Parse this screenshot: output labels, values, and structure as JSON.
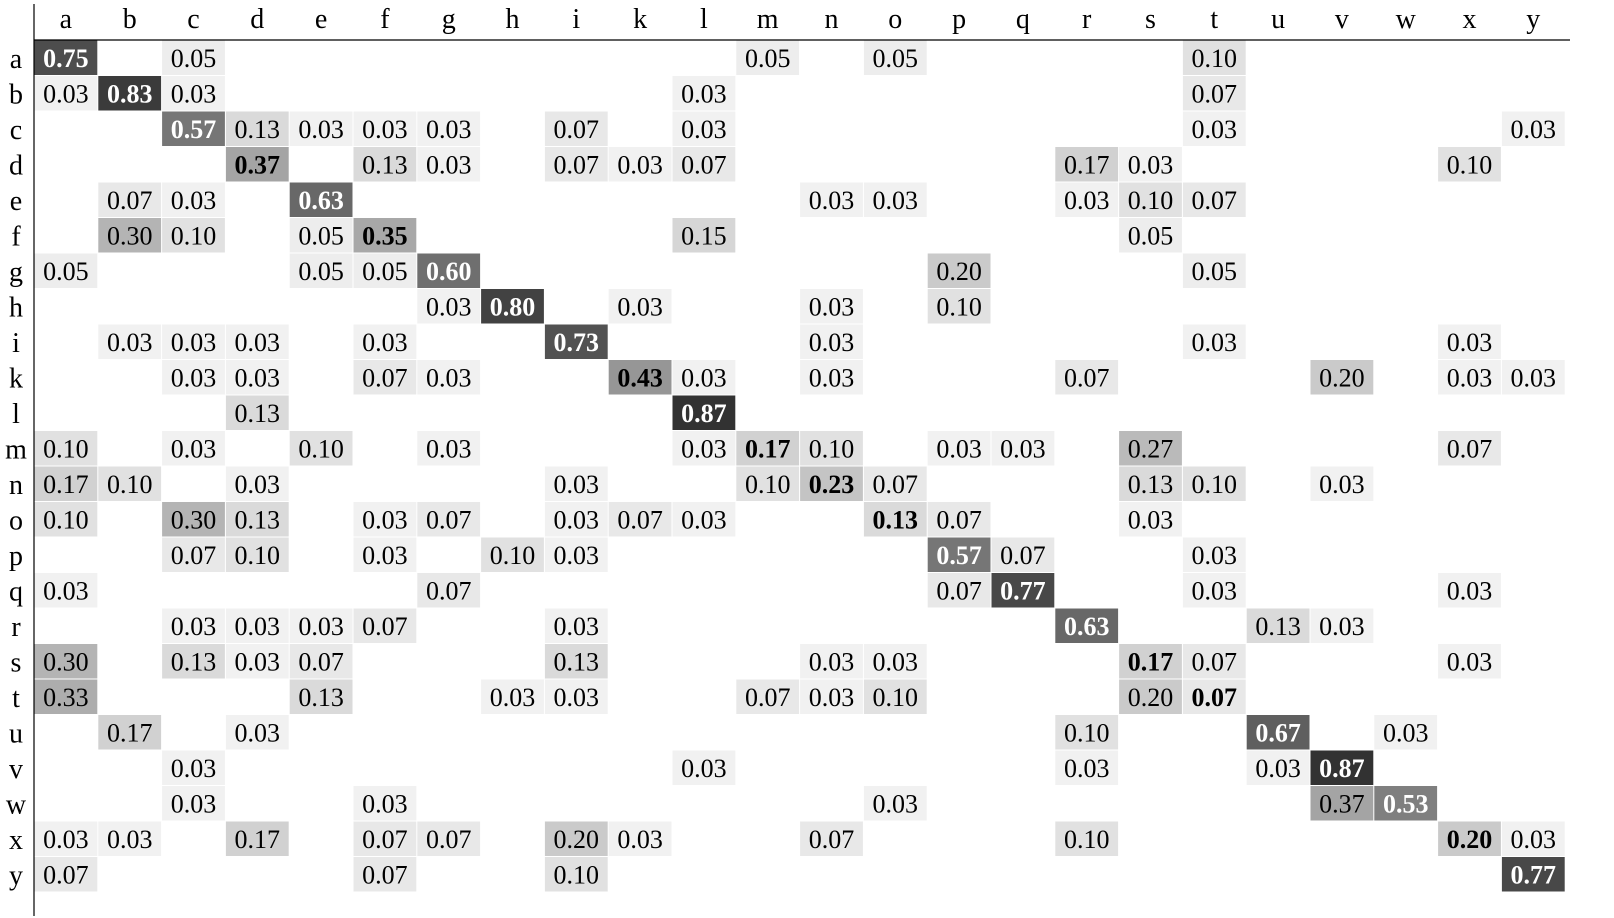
{
  "chart_data": {
    "type": "heatmap",
    "title": "",
    "xlabel": "",
    "ylabel": "",
    "x_labels": [
      "a",
      "b",
      "c",
      "d",
      "e",
      "f",
      "g",
      "h",
      "i",
      "k",
      "l",
      "m",
      "n",
      "o",
      "p",
      "q",
      "r",
      "s",
      "t",
      "u",
      "v",
      "w",
      "x",
      "y"
    ],
    "y_labels": [
      "a",
      "b",
      "c",
      "d",
      "e",
      "f",
      "g",
      "h",
      "i",
      "k",
      "l",
      "m",
      "n",
      "o",
      "p",
      "q",
      "r",
      "s",
      "t",
      "u",
      "v",
      "w",
      "x",
      "y"
    ],
    "value_range": [
      0,
      1
    ],
    "cells": [
      [
        "a",
        "a",
        0.75
      ],
      [
        "a",
        "c",
        0.05
      ],
      [
        "a",
        "m",
        0.05
      ],
      [
        "a",
        "o",
        0.05
      ],
      [
        "a",
        "t",
        0.1
      ],
      [
        "b",
        "a",
        0.03
      ],
      [
        "b",
        "b",
        0.83
      ],
      [
        "b",
        "c",
        0.03
      ],
      [
        "b",
        "l",
        0.03
      ],
      [
        "b",
        "t",
        0.07
      ],
      [
        "c",
        "c",
        0.57
      ],
      [
        "c",
        "d",
        0.13
      ],
      [
        "c",
        "e",
        0.03
      ],
      [
        "c",
        "f",
        0.03
      ],
      [
        "c",
        "g",
        0.03
      ],
      [
        "c",
        "i",
        0.07
      ],
      [
        "c",
        "l",
        0.03
      ],
      [
        "c",
        "t",
        0.03
      ],
      [
        "c",
        "y",
        0.03
      ],
      [
        "d",
        "d",
        0.37
      ],
      [
        "d",
        "f",
        0.13
      ],
      [
        "d",
        "g",
        0.03
      ],
      [
        "d",
        "i",
        0.07
      ],
      [
        "d",
        "k",
        0.03
      ],
      [
        "d",
        "l",
        0.07
      ],
      [
        "d",
        "r",
        0.17
      ],
      [
        "d",
        "s",
        0.03
      ],
      [
        "d",
        "x",
        0.1
      ],
      [
        "e",
        "b",
        0.07
      ],
      [
        "e",
        "c",
        0.03
      ],
      [
        "e",
        "e",
        0.63
      ],
      [
        "e",
        "n",
        0.03
      ],
      [
        "e",
        "o",
        0.03
      ],
      [
        "e",
        "r",
        0.03
      ],
      [
        "e",
        "s",
        0.1
      ],
      [
        "e",
        "t",
        0.07
      ],
      [
        "f",
        "b",
        0.3
      ],
      [
        "f",
        "c",
        0.1
      ],
      [
        "f",
        "e",
        0.05
      ],
      [
        "f",
        "f",
        0.35
      ],
      [
        "f",
        "l",
        0.15
      ],
      [
        "f",
        "s",
        0.05
      ],
      [
        "g",
        "a",
        0.05
      ],
      [
        "g",
        "e",
        0.05
      ],
      [
        "g",
        "f",
        0.05
      ],
      [
        "g",
        "g",
        0.6
      ],
      [
        "g",
        "p",
        0.2
      ],
      [
        "g",
        "t",
        0.05
      ],
      [
        "h",
        "g",
        0.03
      ],
      [
        "h",
        "h",
        0.8
      ],
      [
        "h",
        "k",
        0.03
      ],
      [
        "h",
        "n",
        0.03
      ],
      [
        "h",
        "p",
        0.1
      ],
      [
        "i",
        "b",
        0.03
      ],
      [
        "i",
        "c",
        0.03
      ],
      [
        "i",
        "d",
        0.03
      ],
      [
        "i",
        "f",
        0.03
      ],
      [
        "i",
        "i",
        0.73
      ],
      [
        "i",
        "n",
        0.03
      ],
      [
        "i",
        "t",
        0.03
      ],
      [
        "i",
        "x",
        0.03
      ],
      [
        "k",
        "c",
        0.03
      ],
      [
        "k",
        "d",
        0.03
      ],
      [
        "k",
        "f",
        0.07
      ],
      [
        "k",
        "g",
        0.03
      ],
      [
        "k",
        "k",
        0.43
      ],
      [
        "k",
        "l",
        0.03
      ],
      [
        "k",
        "n",
        0.03
      ],
      [
        "k",
        "r",
        0.07
      ],
      [
        "k",
        "v",
        0.2
      ],
      [
        "k",
        "x",
        0.03
      ],
      [
        "k",
        "y",
        0.03
      ],
      [
        "l",
        "d",
        0.13
      ],
      [
        "l",
        "l",
        0.87
      ],
      [
        "m",
        "a",
        0.1
      ],
      [
        "m",
        "c",
        0.03
      ],
      [
        "m",
        "e",
        0.1
      ],
      [
        "m",
        "g",
        0.03
      ],
      [
        "m",
        "l",
        0.03
      ],
      [
        "m",
        "m",
        0.17
      ],
      [
        "m",
        "n",
        0.1
      ],
      [
        "m",
        "p",
        0.03
      ],
      [
        "m",
        "q",
        0.03
      ],
      [
        "m",
        "s",
        0.27
      ],
      [
        "m",
        "x",
        0.07
      ],
      [
        "n",
        "a",
        0.17
      ],
      [
        "n",
        "b",
        0.1
      ],
      [
        "n",
        "d",
        0.03
      ],
      [
        "n",
        "i",
        0.03
      ],
      [
        "n",
        "m",
        0.1
      ],
      [
        "n",
        "n",
        0.23
      ],
      [
        "n",
        "o",
        0.07
      ],
      [
        "n",
        "s",
        0.13
      ],
      [
        "n",
        "t",
        0.1
      ],
      [
        "n",
        "v",
        0.03
      ],
      [
        "o",
        "a",
        0.1
      ],
      [
        "o",
        "c",
        0.3
      ],
      [
        "o",
        "d",
        0.13
      ],
      [
        "o",
        "f",
        0.03
      ],
      [
        "o",
        "g",
        0.07
      ],
      [
        "o",
        "i",
        0.03
      ],
      [
        "o",
        "k",
        0.07
      ],
      [
        "o",
        "l",
        0.03
      ],
      [
        "o",
        "o",
        0.13
      ],
      [
        "o",
        "p",
        0.07
      ],
      [
        "o",
        "s",
        0.03
      ],
      [
        "p",
        "c",
        0.07
      ],
      [
        "p",
        "d",
        0.1
      ],
      [
        "p",
        "f",
        0.03
      ],
      [
        "p",
        "h",
        0.1
      ],
      [
        "p",
        "i",
        0.03
      ],
      [
        "p",
        "p",
        0.57
      ],
      [
        "p",
        "q",
        0.07
      ],
      [
        "p",
        "t",
        0.03
      ],
      [
        "q",
        "a",
        0.03
      ],
      [
        "q",
        "g",
        0.07
      ],
      [
        "q",
        "p",
        0.07
      ],
      [
        "q",
        "q",
        0.77
      ],
      [
        "q",
        "t",
        0.03
      ],
      [
        "q",
        "x",
        0.03
      ],
      [
        "r",
        "c",
        0.03
      ],
      [
        "r",
        "d",
        0.03
      ],
      [
        "r",
        "e",
        0.03
      ],
      [
        "r",
        "f",
        0.07
      ],
      [
        "r",
        "i",
        0.03
      ],
      [
        "r",
        "r",
        0.63
      ],
      [
        "r",
        "u",
        0.13
      ],
      [
        "r",
        "v",
        0.03
      ],
      [
        "s",
        "a",
        0.3
      ],
      [
        "s",
        "c",
        0.13
      ],
      [
        "s",
        "d",
        0.03
      ],
      [
        "s",
        "e",
        0.07
      ],
      [
        "s",
        "i",
        0.13
      ],
      [
        "s",
        "n",
        0.03
      ],
      [
        "s",
        "o",
        0.03
      ],
      [
        "s",
        "s",
        0.17
      ],
      [
        "s",
        "t",
        0.07
      ],
      [
        "s",
        "x",
        0.03
      ],
      [
        "t",
        "a",
        0.33
      ],
      [
        "t",
        "e",
        0.13
      ],
      [
        "t",
        "h",
        0.03
      ],
      [
        "t",
        "i",
        0.03
      ],
      [
        "t",
        "m",
        0.07
      ],
      [
        "t",
        "n",
        0.03
      ],
      [
        "t",
        "o",
        0.1
      ],
      [
        "t",
        "s",
        0.2
      ],
      [
        "t",
        "t",
        0.07
      ],
      [
        "u",
        "b",
        0.17
      ],
      [
        "u",
        "d",
        0.03
      ],
      [
        "u",
        "r",
        0.1
      ],
      [
        "u",
        "u",
        0.67
      ],
      [
        "u",
        "w",
        0.03
      ],
      [
        "v",
        "c",
        0.03
      ],
      [
        "v",
        "l",
        0.03
      ],
      [
        "v",
        "r",
        0.03
      ],
      [
        "v",
        "u",
        0.03
      ],
      [
        "v",
        "v",
        0.87
      ],
      [
        "w",
        "c",
        0.03
      ],
      [
        "w",
        "f",
        0.03
      ],
      [
        "w",
        "o",
        0.03
      ],
      [
        "w",
        "v",
        0.37
      ],
      [
        "w",
        "w",
        0.53
      ],
      [
        "x",
        "a",
        0.03
      ],
      [
        "x",
        "b",
        0.03
      ],
      [
        "x",
        "d",
        0.17
      ],
      [
        "x",
        "f",
        0.07
      ],
      [
        "x",
        "g",
        0.07
      ],
      [
        "x",
        "i",
        0.2
      ],
      [
        "x",
        "k",
        0.03
      ],
      [
        "x",
        "n",
        0.07
      ],
      [
        "x",
        "r",
        0.1
      ],
      [
        "x",
        "x",
        0.2
      ],
      [
        "x",
        "y",
        0.03
      ],
      [
        "y",
        "a",
        0.07
      ],
      [
        "y",
        "f",
        0.07
      ],
      [
        "y",
        "i",
        0.1
      ],
      [
        "y",
        "y",
        0.77
      ]
    ],
    "highlight": "diagonal values shown in bold",
    "colormap": "white-to-black grayscale by value",
    "grid": false,
    "legend": "none"
  }
}
